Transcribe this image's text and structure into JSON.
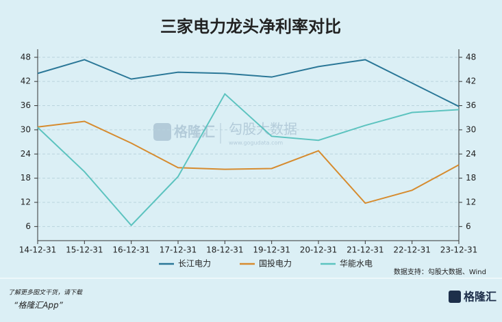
{
  "chart_data": {
    "type": "line",
    "title": "三家电力龙头净利率对比",
    "categories": [
      "14-12-31",
      "15-12-31",
      "16-12-31",
      "17-12-31",
      "18-12-31",
      "19-12-31",
      "20-12-31",
      "21-12-31",
      "22-12-31",
      "23-12-31"
    ],
    "series": [
      {
        "name": "长江电力",
        "color": "#2a7797",
        "values": [
          44.0,
          47.4,
          42.6,
          44.3,
          44.0,
          43.1,
          45.7,
          47.4,
          41.6,
          35.8
        ]
      },
      {
        "name": "国投电力",
        "color": "#d68b2e",
        "values": [
          30.7,
          32.1,
          26.7,
          20.6,
          20.2,
          20.4,
          24.8,
          11.8,
          15.0,
          21.3
        ]
      },
      {
        "name": "华能水电",
        "color": "#5cc3bf",
        "values": [
          30.6,
          19.6,
          6.3,
          18.4,
          38.9,
          28.4,
          27.4,
          31.1,
          34.3,
          35.0
        ]
      }
    ],
    "ylim": [
      2.5,
      50
    ],
    "yticks": [
      6,
      12,
      18,
      24,
      30,
      36,
      42,
      48
    ],
    "y2lim": [
      2.5,
      50
    ],
    "y2ticks": [
      6,
      12,
      18,
      24,
      30,
      36,
      42,
      48
    ],
    "grid": true,
    "legend": "bottom",
    "source": "数据支持：勾股大数据、Wind",
    "watermark": {
      "brand": "格隆汇",
      "partner": "勾股大数据",
      "url": "www.gogudata.com"
    }
  },
  "footer": {
    "note": "了解更多图文干货，请下载",
    "app": "“格隆汇App”",
    "logo": "格隆汇"
  }
}
